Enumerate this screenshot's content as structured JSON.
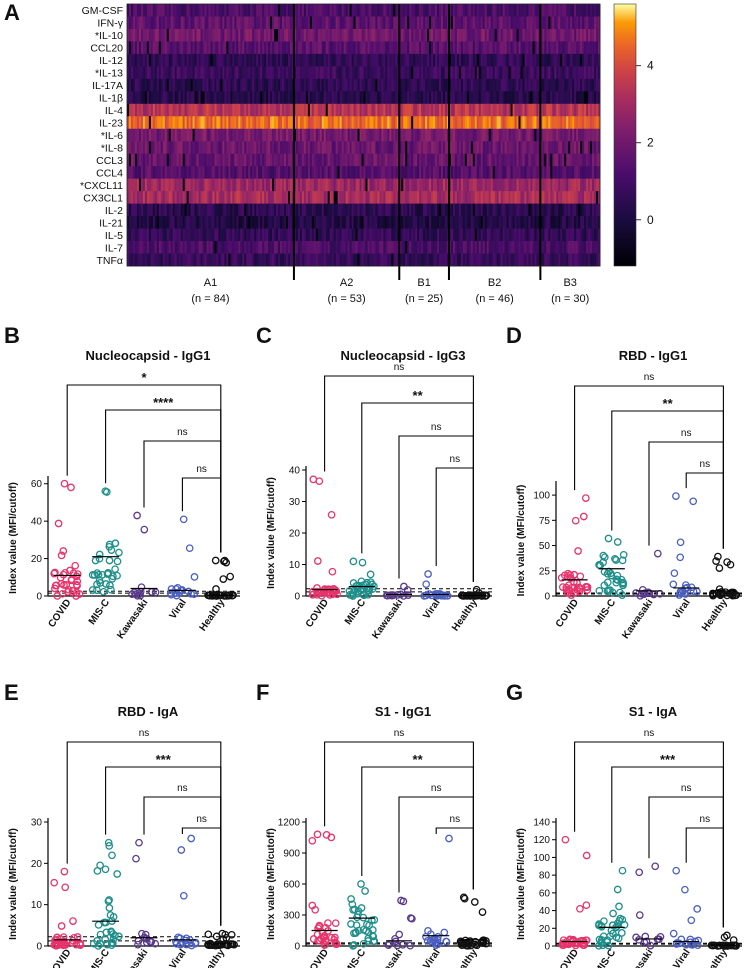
{
  "figure": {
    "heatmap": {
      "panel_label": "A",
      "cytokines": [
        "GM-CSF",
        "IFN-γ",
        "*IL-10",
        "CCL20",
        "IL-12",
        "*IL-13",
        "IL-17A",
        "IL-1β",
        "IL-4",
        "IL-23",
        "*IL-6",
        "*IL-8",
        "CCL3",
        "CCL4",
        "*CXCL11",
        "CX3CL1",
        "IL-2",
        "IL-21",
        "IL-5",
        "IL-7",
        "TNFα"
      ],
      "groups": [
        {
          "name": "A1",
          "n": "(n = 84)",
          "count": 84
        },
        {
          "name": "A2",
          "n": "(n = 53)",
          "count": 53
        },
        {
          "name": "B1",
          "n": "(n = 25)",
          "count": 25
        },
        {
          "name": "B2",
          "n": "(n = 46)",
          "count": 46
        },
        {
          "name": "B3",
          "n": "(n = 30)",
          "count": 30
        }
      ],
      "row_levels": [
        1.2,
        1.6,
        2.0,
        1.5,
        0.6,
        0.8,
        0.5,
        0.3,
        3.4,
        4.6,
        2.1,
        1.9,
        1.8,
        1.4,
        2.9,
        3.1,
        0.4,
        0.2,
        0.6,
        1.2,
        0.7
      ],
      "colorbar": {
        "ticks": [
          "4",
          "2",
          "0"
        ],
        "tick_values": [
          4,
          2,
          0
        ],
        "min": -1.2,
        "max": 5.6
      }
    },
    "panels": [
      {
        "label": "B",
        "title": "Nucleocapsid - IgG1",
        "ylabel": "Index value (MFI/cutoff)",
        "categories": [
          "COVID",
          "MIS-C",
          "Kawasaki",
          "Viral",
          "Healthy"
        ],
        "yticks": [
          "0",
          "20",
          "40",
          "60"
        ],
        "ytick_values": [
          0,
          20,
          40,
          60
        ],
        "ylim": [
          0,
          62
        ],
        "means": [
          11,
          21,
          4,
          3,
          0.5
        ],
        "cutoffs": [
          1,
          2
        ],
        "comparisons": [
          {
            "from": "COVID",
            "to": "Healthy",
            "label": "*"
          },
          {
            "from": "MIS-C",
            "to": "Healthy",
            "label": "****"
          },
          {
            "from": "Kawasaki",
            "to": "Healthy",
            "label": "ns"
          },
          {
            "from": "Viral",
            "to": "Healthy",
            "label": "ns"
          }
        ],
        "maxes": [
          60,
          56,
          43,
          41,
          19
        ]
      },
      {
        "label": "C",
        "title": "Nucleocapsid - IgG3",
        "ylabel": "Index value (MFI/cutoff)",
        "categories": [
          "COVID",
          "MIS-C",
          "Kawasaki",
          "Viral",
          "Healthy"
        ],
        "yticks": [
          "0",
          "10",
          "20",
          "30",
          "40"
        ],
        "ytick_values": [
          0,
          10,
          20,
          30,
          40
        ],
        "ylim": [
          0,
          40
        ],
        "means": [
          2,
          3,
          0.5,
          0.5,
          0.2
        ],
        "cutoffs": [
          1,
          2
        ],
        "comparisons": [
          {
            "from": "COVID",
            "to": "Healthy",
            "label": "ns"
          },
          {
            "from": "MIS-C",
            "to": "Healthy",
            "label": "**"
          },
          {
            "from": "Kawasaki",
            "to": "Healthy",
            "label": "ns"
          },
          {
            "from": "Viral",
            "to": "Healthy",
            "label": "ns"
          }
        ],
        "maxes": [
          37,
          11,
          3,
          7,
          2
        ]
      },
      {
        "label": "D",
        "title": "RBD - IgG1",
        "ylabel": "Index value (MFI/cutoff)",
        "categories": [
          "COVID",
          "MIS-C",
          "Kawasaki",
          "Viral",
          "Healthy"
        ],
        "yticks": [
          "0",
          "25",
          "50",
          "75",
          "100"
        ],
        "ytick_values": [
          0,
          25,
          50,
          75,
          100
        ],
        "ylim": [
          0,
          110
        ],
        "means": [
          16,
          27,
          5,
          8,
          5
        ],
        "cutoffs": [
          1,
          2
        ],
        "comparisons": [
          {
            "from": "COVID",
            "to": "Healthy",
            "label": "ns"
          },
          {
            "from": "MIS-C",
            "to": "Healthy",
            "label": "**"
          },
          {
            "from": "Kawasaki",
            "to": "Healthy",
            "label": "ns"
          },
          {
            "from": "Viral",
            "to": "Healthy",
            "label": "ns"
          }
        ],
        "maxes": [
          97,
          57,
          42,
          99,
          39
        ]
      },
      {
        "label": "E",
        "title": "RBD - IgA",
        "ylabel": "Index value (MFI/cutoff)",
        "categories": [
          "COVID",
          "MIS-C",
          "Kawasaki",
          "Viral",
          "Healthy"
        ],
        "yticks": [
          "0",
          "10",
          "20",
          "30"
        ],
        "ytick_values": [
          0,
          10,
          20,
          30
        ],
        "ylim": [
          0,
          30
        ],
        "means": [
          1.5,
          6,
          2,
          1.5,
          0.5
        ],
        "cutoffs": [
          1,
          2
        ],
        "comparisons": [
          {
            "from": "COVID",
            "to": "Healthy",
            "label": "ns"
          },
          {
            "from": "MIS-C",
            "to": "Healthy",
            "label": "***"
          },
          {
            "from": "Kawasaki",
            "to": "Healthy",
            "label": "ns"
          },
          {
            "from": "Viral",
            "to": "Healthy",
            "label": "ns"
          }
        ],
        "maxes": [
          18,
          25,
          25,
          26,
          3
        ]
      },
      {
        "label": "F",
        "title": "S1 - IgG1",
        "ylabel": "Index value (MFI/cutoff)",
        "categories": [
          "COVID",
          "MIS-C",
          "Kawasaki",
          "Viral",
          "Healthy"
        ],
        "yticks": [
          "0",
          "300",
          "600",
          "900",
          "1200"
        ],
        "ytick_values": [
          0,
          300,
          600,
          900,
          1200
        ],
        "ylim": [
          0,
          1200
        ],
        "means": [
          150,
          270,
          50,
          100,
          60
        ],
        "cutoffs": [
          10,
          20
        ],
        "comparisons": [
          {
            "from": "COVID",
            "to": "Healthy",
            "label": "ns"
          },
          {
            "from": "MIS-C",
            "to": "Healthy",
            "label": "**"
          },
          {
            "from": "Kawasaki",
            "to": "Healthy",
            "label": "ns"
          },
          {
            "from": "Viral",
            "to": "Healthy",
            "label": "ns"
          }
        ],
        "maxes": [
          1080,
          600,
          440,
          1040,
          470
        ]
      },
      {
        "label": "G",
        "title": "S1 - IgA",
        "ylabel": "Index value (MFI/cutoff)",
        "categories": [
          "COVID",
          "MIS-C",
          "Kawasaki",
          "Viral",
          "Healthy"
        ],
        "yticks": [
          "0",
          "20",
          "40",
          "60",
          "80",
          "100",
          "120",
          "140"
        ],
        "ytick_values": [
          0,
          20,
          40,
          60,
          80,
          100,
          120,
          140
        ],
        "ylim": [
          0,
          140
        ],
        "means": [
          5,
          21,
          8,
          5,
          1
        ],
        "cutoffs": [
          1,
          2
        ],
        "comparisons": [
          {
            "from": "COVID",
            "to": "Healthy",
            "label": "ns"
          },
          {
            "from": "MIS-C",
            "to": "Healthy",
            "label": "***"
          },
          {
            "from": "Kawasaki",
            "to": "Healthy",
            "label": "ns"
          },
          {
            "from": "Viral",
            "to": "Healthy",
            "label": "ns"
          }
        ],
        "maxes": [
          120,
          85,
          90,
          85,
          12
        ]
      }
    ],
    "colors": {
      "COVID": "#e8336c",
      "MIS-C": "#1f8f8a",
      "Kawasaki": "#5a3a8c",
      "Viral": "#4a5fc1",
      "Healthy": "#111111"
    }
  },
  "chart_data": [
    {
      "type": "heatmap",
      "title": "",
      "xlabel": "",
      "ylabel": "",
      "categories_y": [
        "GM-CSF",
        "IFN-γ",
        "*IL-10",
        "CCL20",
        "IL-12",
        "*IL-13",
        "IL-17A",
        "IL-1β",
        "IL-4",
        "IL-23",
        "*IL-6",
        "*IL-8",
        "CCL3",
        "CCL4",
        "*CXCL11",
        "CX3CL1",
        "IL-2",
        "IL-21",
        "IL-5",
        "IL-7",
        "TNFα"
      ],
      "groups": [
        "A1 (n = 84)",
        "A2 (n = 53)",
        "B1 (n = 25)",
        "B2 (n = 46)",
        "B3 (n = 30)"
      ],
      "colorbar_range": [
        -1.2,
        5.6
      ]
    },
    {
      "type": "scatter",
      "title": "Nucleocapsid - IgG1",
      "categories": [
        "COVID",
        "MIS-C",
        "Kawasaki",
        "Viral",
        "Healthy"
      ],
      "means": [
        11,
        21,
        4,
        3,
        0.5
      ],
      "ylim": [
        0,
        62
      ]
    },
    {
      "type": "scatter",
      "title": "Nucleocapsid - IgG3",
      "categories": [
        "COVID",
        "MIS-C",
        "Kawasaki",
        "Viral",
        "Healthy"
      ],
      "means": [
        2,
        3,
        0.5,
        0.5,
        0.2
      ],
      "ylim": [
        0,
        40
      ]
    },
    {
      "type": "scatter",
      "title": "RBD - IgG1",
      "categories": [
        "COVID",
        "MIS-C",
        "Kawasaki",
        "Viral",
        "Healthy"
      ],
      "means": [
        16,
        27,
        5,
        8,
        5
      ],
      "ylim": [
        0,
        110
      ]
    },
    {
      "type": "scatter",
      "title": "RBD - IgA",
      "categories": [
        "COVID",
        "MIS-C",
        "Kawasaki",
        "Viral",
        "Healthy"
      ],
      "means": [
        1.5,
        6,
        2,
        1.5,
        0.5
      ],
      "ylim": [
        0,
        30
      ]
    },
    {
      "type": "scatter",
      "title": "S1 - IgG1",
      "categories": [
        "COVID",
        "MIS-C",
        "Kawasaki",
        "Viral",
        "Healthy"
      ],
      "means": [
        150,
        270,
        50,
        100,
        60
      ],
      "ylim": [
        0,
        1200
      ]
    },
    {
      "type": "scatter",
      "title": "S1 - IgA",
      "categories": [
        "COVID",
        "MIS-C",
        "Kawasaki",
        "Viral",
        "Healthy"
      ],
      "means": [
        5,
        21,
        8,
        5,
        1
      ],
      "ylim": [
        0,
        140
      ]
    }
  ]
}
